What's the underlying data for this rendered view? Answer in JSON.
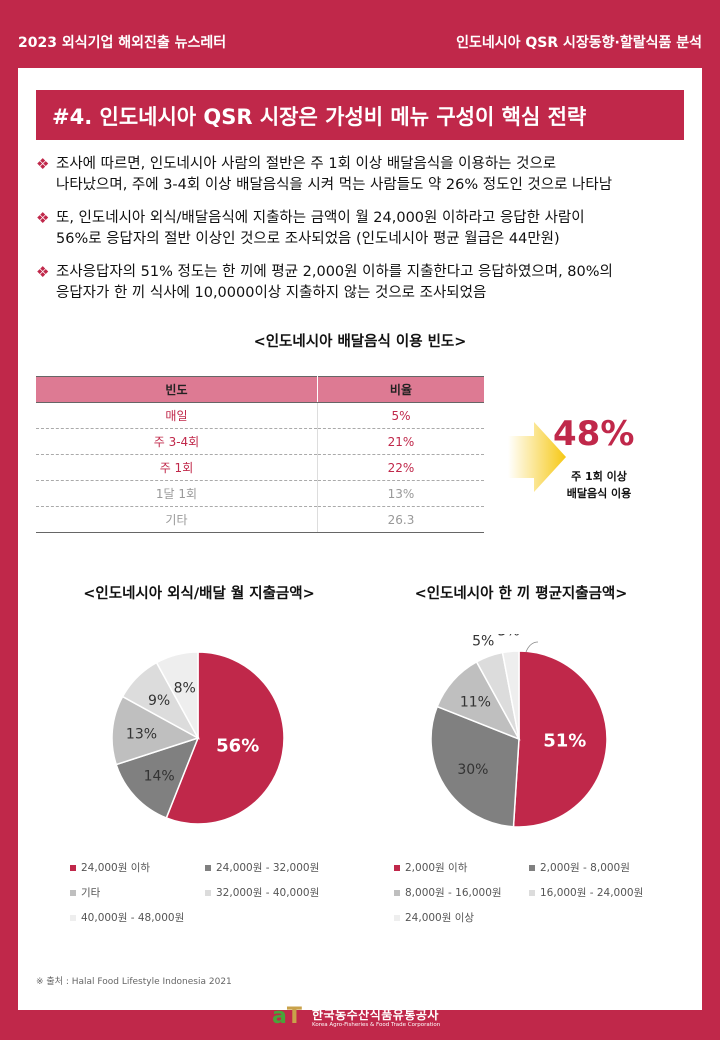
{
  "header": {
    "left": "2023 외식기업 해외진출 뉴스레터",
    "right": "인도네시아 QSR 시장동향·할랄식품 분석"
  },
  "section_title": "#4. 인도네시아 QSR 시장은 가성비 메뉴 구성이 핵심 전략",
  "bullets": [
    {
      "mark": "❖",
      "lines": [
        "조사에 따르면, 인도네시아 사람의 절반은 주 1회 이상 배달음식을 이용하는 것으로",
        "나타났으며, 주에 3-4회 이상 배달음식을 시켜 먹는 사람들도 약 26% 정도인 것으로 나타남"
      ]
    },
    {
      "mark": "❖",
      "lines": [
        "또, 인도네시아 외식/배달음식에 지출하는 금액이 월 24,000원  이하라고 응답한 사람이",
        "56%로 응답자의 절반 이상인 것으로 조사되었음 (인도네시아 평균 월급은 44만원)"
      ]
    },
    {
      "mark": "❖",
      "lines": [
        "조사응답자의 51% 정도는 한 끼에 평균 2,000원  이하를 지출한다고 응답하였으며, 80%의",
        "응답자가 한 끼 식사에 10,0000이상  지출하지 않는 것으로 조사되었음"
      ]
    }
  ],
  "frequency_table": {
    "title": "<인도네시아 배달음식 이용 빈도>",
    "headers": [
      "빈도",
      "비율"
    ],
    "rows": [
      {
        "freq": "매일",
        "ratio": "5%",
        "style": "hl"
      },
      {
        "freq": "주 3-4회",
        "ratio": "21%",
        "style": "hl"
      },
      {
        "freq": "주 1회",
        "ratio": "22%",
        "style": "hl"
      },
      {
        "freq": "1달 1회",
        "ratio": "13%",
        "style": "dim"
      },
      {
        "freq": "기타",
        "ratio": "26.3",
        "style": "dim"
      }
    ]
  },
  "highlight": {
    "value": "48%",
    "caption_line1": "주 1회 이상",
    "caption_line2": "배달음식  이용"
  },
  "chart_data": [
    {
      "type": "pie",
      "title": "<인도네시아 외식/배달 월 지출금액>",
      "labels": [
        "24,000원 이하",
        "24,000원 - 32,000원",
        "기타",
        "32,000원 - 40,000원",
        "40,000원 - 48,000원"
      ],
      "values": [
        56,
        14,
        13,
        9,
        8
      ],
      "value_labels": [
        "56%",
        "14%",
        "13%",
        "9%",
        "8%"
      ],
      "colors": [
        "#c0284a",
        "#808080",
        "#bfbfbf",
        "#dcdcdc",
        "#eeeeee"
      ],
      "legend_placement": "bottom"
    },
    {
      "type": "pie",
      "title": "<인도네시아 한 끼 평균지출금액>",
      "labels": [
        "2,000원 이하",
        "2,000원 - 8,000원",
        "8,000원 - 16,000원",
        "16,000원 - 24,000원",
        "24,000원 이상"
      ],
      "values": [
        51,
        30,
        11,
        5,
        3
      ],
      "value_labels": [
        "51%",
        "30%",
        "11%",
        "5%",
        "3%"
      ],
      "colors": [
        "#c0284a",
        "#808080",
        "#bfbfbf",
        "#dcdcdc",
        "#eeeeee"
      ],
      "legend_placement": "bottom"
    }
  ],
  "source": "※ 출처 : Halal Food Lifestyle Indonesia 2021",
  "footer": {
    "logo_mark_a": "a",
    "logo_mark_t": "T",
    "org_kr": "한국농수산식품유통공사",
    "org_en": "Korea Agro-Fisheries & Food Trade Corporation"
  }
}
